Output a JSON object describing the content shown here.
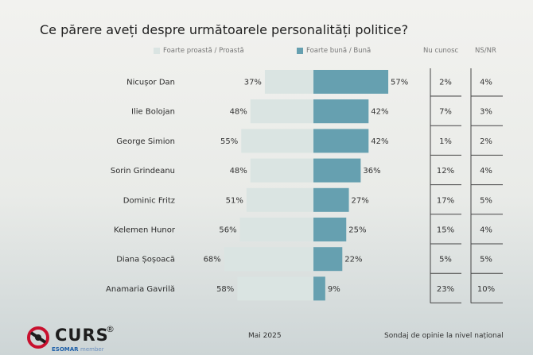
{
  "title": "Ce părere aveți despre următoarele personalități politice?",
  "legend": {
    "negative": {
      "label": "Foarte proastă / Proastă",
      "color": "#dae4e2"
    },
    "positive": {
      "label": "Foarte bună / Bună",
      "color": "#66a0b0"
    }
  },
  "columns": {
    "unknown": "Nu cunosc",
    "nsnr": "NS/NR"
  },
  "chart_data": {
    "type": "bar",
    "title": "Ce părere aveți despre următoarele personalități politice?",
    "categories": [
      "Nicușor Dan",
      "Ilie Bolojan",
      "George Simion",
      "Sorin Grindeanu",
      "Dominic Fritz",
      "Kelemen Hunor",
      "Diana Șoșoacă",
      "Anamaria Gavrilă"
    ],
    "series": [
      {
        "name": "Foarte proastă / Proastă",
        "values": [
          37,
          48,
          55,
          48,
          51,
          56,
          68,
          58
        ],
        "labels": [
          "37%",
          "48%",
          "55%",
          "48%",
          "51%",
          "56%",
          "68%",
          "58%"
        ]
      },
      {
        "name": "Foarte bună / Bună",
        "values": [
          57,
          42,
          42,
          36,
          27,
          25,
          22,
          9
        ],
        "labels": [
          "57%",
          "42%",
          "42%",
          "36%",
          "27%",
          "25%",
          "22%",
          "9%"
        ]
      },
      {
        "name": "Nu cunosc",
        "values": [
          2,
          7,
          1,
          12,
          17,
          15,
          5,
          23
        ],
        "labels": [
          "2%",
          "7%",
          "1%",
          "12%",
          "17%",
          "15%",
          "5%",
          "23%"
        ]
      },
      {
        "name": "NS/NR",
        "values": [
          4,
          3,
          2,
          4,
          5,
          4,
          5,
          10
        ],
        "labels": [
          "4%",
          "3%",
          "2%",
          "4%",
          "5%",
          "4%",
          "5%",
          "10%"
        ]
      }
    ],
    "unit": "%",
    "legend_position": "top"
  },
  "logo": {
    "word": "CURS",
    "reg": "®",
    "sub1": "ESOMAR",
    "sub2": "member"
  },
  "footer": {
    "date": "Mai 2025",
    "note": "Sondaj de opinie la nivel național"
  }
}
